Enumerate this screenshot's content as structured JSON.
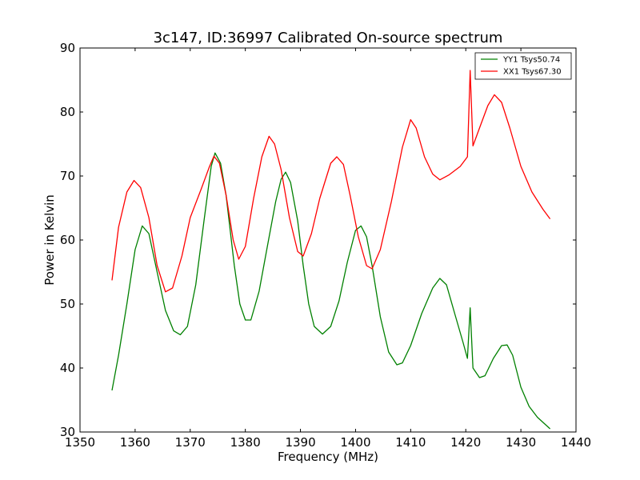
{
  "chart_data": {
    "type": "line",
    "title": "3c147, ID:36997 Calibrated On-source spectrum",
    "xlabel": "Frequency (MHz)",
    "ylabel": "Power in Kelvin",
    "xlim": [
      1350,
      1440
    ],
    "ylim": [
      30,
      90
    ],
    "xticks": [
      1350,
      1360,
      1370,
      1380,
      1390,
      1400,
      1410,
      1420,
      1430,
      1440
    ],
    "yticks": [
      30,
      40,
      50,
      60,
      70,
      80,
      90
    ],
    "grid": false,
    "legend_position": "top-right",
    "series": [
      {
        "name": "YY1 Tsys50.74",
        "color": "#008000",
        "points": [
          [
            1355.8,
            36.5
          ],
          [
            1357.0,
            42.0
          ],
          [
            1358.5,
            50.0
          ],
          [
            1360.0,
            58.5
          ],
          [
            1361.3,
            62.2
          ],
          [
            1362.5,
            61.0
          ],
          [
            1364.0,
            55.0
          ],
          [
            1365.5,
            49.0
          ],
          [
            1367.0,
            45.8
          ],
          [
            1368.2,
            45.2
          ],
          [
            1369.5,
            46.5
          ],
          [
            1371.0,
            53.0
          ],
          [
            1372.5,
            63.0
          ],
          [
            1373.8,
            71.5
          ],
          [
            1374.5,
            73.6
          ],
          [
            1375.5,
            72.0
          ],
          [
            1376.5,
            67.0
          ],
          [
            1378.0,
            56.0
          ],
          [
            1379.0,
            50.0
          ],
          [
            1380.0,
            47.5
          ],
          [
            1381.0,
            47.5
          ],
          [
            1382.5,
            52.0
          ],
          [
            1384.0,
            59.0
          ],
          [
            1385.5,
            66.0
          ],
          [
            1386.5,
            69.5
          ],
          [
            1387.3,
            70.6
          ],
          [
            1388.2,
            69.0
          ],
          [
            1389.5,
            63.0
          ],
          [
            1390.5,
            56.0
          ],
          [
            1391.5,
            50.0
          ],
          [
            1392.5,
            46.5
          ],
          [
            1394.0,
            45.3
          ],
          [
            1395.5,
            46.5
          ],
          [
            1397.0,
            50.5
          ],
          [
            1398.5,
            56.5
          ],
          [
            1400.0,
            61.5
          ],
          [
            1401.0,
            62.2
          ],
          [
            1402.0,
            60.5
          ],
          [
            1403.0,
            56.0
          ],
          [
            1404.5,
            48.0
          ],
          [
            1406.0,
            42.5
          ],
          [
            1407.5,
            40.5
          ],
          [
            1408.5,
            40.8
          ],
          [
            1410.0,
            43.5
          ],
          [
            1412.0,
            48.5
          ],
          [
            1414.0,
            52.5
          ],
          [
            1415.3,
            54.0
          ],
          [
            1416.5,
            53.0
          ],
          [
            1418.0,
            48.5
          ],
          [
            1419.5,
            44.0
          ],
          [
            1420.3,
            41.5
          ],
          [
            1420.8,
            49.4
          ],
          [
            1421.3,
            40.0
          ],
          [
            1422.5,
            38.5
          ],
          [
            1423.5,
            38.8
          ],
          [
            1425.0,
            41.5
          ],
          [
            1426.5,
            43.5
          ],
          [
            1427.5,
            43.6
          ],
          [
            1428.5,
            42.0
          ],
          [
            1430.0,
            37.0
          ],
          [
            1431.5,
            34.0
          ],
          [
            1433.0,
            32.3
          ],
          [
            1435.3,
            30.5
          ]
        ]
      },
      {
        "name": "XX1 Tsys67.30",
        "color": "#ff0000",
        "points": [
          [
            1355.8,
            53.7
          ],
          [
            1357.0,
            62.0
          ],
          [
            1358.5,
            67.5
          ],
          [
            1359.8,
            69.3
          ],
          [
            1361.0,
            68.2
          ],
          [
            1362.5,
            63.5
          ],
          [
            1364.0,
            56.0
          ],
          [
            1365.5,
            51.9
          ],
          [
            1366.8,
            52.5
          ],
          [
            1368.5,
            57.5
          ],
          [
            1370.0,
            63.5
          ],
          [
            1372.0,
            68.0
          ],
          [
            1373.5,
            71.5
          ],
          [
            1374.3,
            73.1
          ],
          [
            1375.3,
            72.0
          ],
          [
            1376.5,
            67.0
          ],
          [
            1377.8,
            60.0
          ],
          [
            1378.8,
            57.0
          ],
          [
            1380.0,
            59.0
          ],
          [
            1381.5,
            66.5
          ],
          [
            1383.0,
            73.0
          ],
          [
            1384.3,
            76.2
          ],
          [
            1385.3,
            75.0
          ],
          [
            1386.5,
            71.0
          ],
          [
            1388.0,
            63.5
          ],
          [
            1389.5,
            58.2
          ],
          [
            1390.5,
            57.5
          ],
          [
            1392.0,
            61.0
          ],
          [
            1393.5,
            66.5
          ],
          [
            1395.5,
            72.0
          ],
          [
            1396.6,
            73.0
          ],
          [
            1397.8,
            71.8
          ],
          [
            1399.0,
            67.0
          ],
          [
            1400.5,
            60.5
          ],
          [
            1402.0,
            56.0
          ],
          [
            1403.0,
            55.5
          ],
          [
            1404.5,
            58.5
          ],
          [
            1406.5,
            66.0
          ],
          [
            1408.5,
            74.5
          ],
          [
            1410.0,
            78.8
          ],
          [
            1411.0,
            77.5
          ],
          [
            1412.5,
            73.0
          ],
          [
            1414.0,
            70.3
          ],
          [
            1415.3,
            69.4
          ],
          [
            1417.0,
            70.2
          ],
          [
            1419.0,
            71.5
          ],
          [
            1420.3,
            73.0
          ],
          [
            1420.8,
            86.5
          ],
          [
            1421.3,
            74.7
          ],
          [
            1422.5,
            77.5
          ],
          [
            1424.0,
            81.0
          ],
          [
            1425.2,
            82.7
          ],
          [
            1426.5,
            81.5
          ],
          [
            1428.0,
            77.5
          ],
          [
            1430.0,
            71.5
          ],
          [
            1432.0,
            67.5
          ],
          [
            1434.0,
            64.8
          ],
          [
            1435.3,
            63.3
          ]
        ]
      }
    ]
  }
}
